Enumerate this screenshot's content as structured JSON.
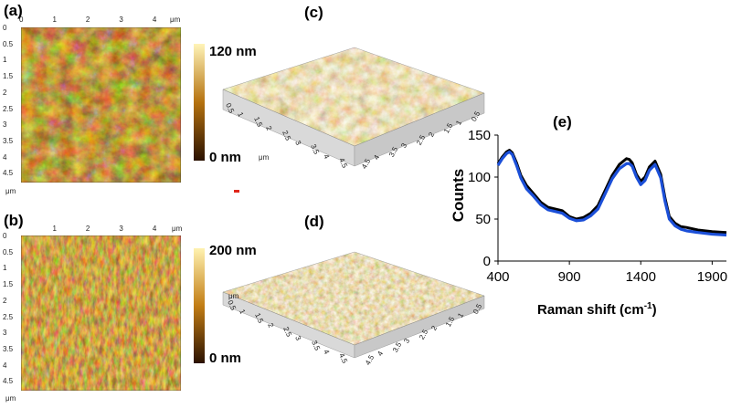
{
  "colors": {
    "afm_dark": "#3a1c02",
    "afm_mid": "#b5720f",
    "afm_light": "#f2d86a",
    "series_blue": "#1b4fd8",
    "series_black": "#000000"
  },
  "panel_a": {
    "label": "(a)",
    "x_ticks": [
      "0",
      "1",
      "2",
      "3",
      "4"
    ],
    "x_unit": "μm",
    "y_ticks": [
      "0",
      "0.5",
      "1",
      "1.5",
      "2",
      "2.5",
      "3",
      "3.5",
      "4",
      "4.5"
    ],
    "y_unit": "μm",
    "colorbar_max": "120 nm",
    "colorbar_min": "0 nm"
  },
  "panel_b": {
    "label": "(b)",
    "x_ticks": [
      "1",
      "2",
      "3",
      "4"
    ],
    "x_unit": "μm",
    "y_ticks": [
      "0",
      "0.5",
      "1",
      "1.5",
      "2",
      "2.5",
      "3",
      "3.5",
      "4",
      "4.5"
    ],
    "y_unit": "μm",
    "colorbar_max": "200 nm",
    "colorbar_min": "0 nm"
  },
  "panel_c": {
    "label": "(c)",
    "left_ticks": [
      "0.5",
      "1",
      "1.5",
      "2",
      "2.5",
      "3",
      "3.5",
      "4",
      "4.5"
    ],
    "right_ticks": [
      "4.5",
      "4",
      "3.5",
      "3",
      "2.5",
      "2",
      "1.5",
      "1",
      "0.5"
    ],
    "unit": "μm"
  },
  "panel_d": {
    "label": "(d)",
    "left_ticks": [
      "0.5",
      "1",
      "1.5",
      "2",
      "2.5",
      "3",
      "3.5",
      "4",
      "4.5"
    ],
    "right_ticks": [
      "4.5",
      "4",
      "3.5",
      "3",
      "2.5",
      "2",
      "1.5",
      "1",
      "0.5"
    ],
    "unit": "μm"
  },
  "panel_e": {
    "label": "(e)"
  },
  "chart_data": {
    "type": "line",
    "title": "",
    "xlabel": "Raman shift (cm",
    "xlabel_sup": "-1",
    "xlabel_close": ")",
    "ylabel": "Counts",
    "xlim": [
      400,
      2000
    ],
    "ylim": [
      0,
      150
    ],
    "x_ticks": [
      400,
      900,
      1400,
      1900
    ],
    "y_ticks": [
      0,
      50,
      100,
      150
    ],
    "grid": false,
    "series": [
      {
        "color": "#000000",
        "x": [
          400,
          430,
          460,
          480,
          500,
          530,
          560,
          600,
          650,
          700,
          750,
          800,
          850,
          900,
          950,
          1000,
          1050,
          1100,
          1150,
          1200,
          1250,
          1300,
          1320,
          1340,
          1370,
          1400,
          1430,
          1460,
          1500,
          1540,
          1570,
          1600,
          1640,
          1680,
          1720,
          1800,
          1900,
          2000
        ],
        "y": [
          116,
          124,
          130,
          132,
          129,
          117,
          102,
          90,
          80,
          70,
          64,
          62,
          60,
          53,
          50,
          52,
          57,
          66,
          84,
          102,
          115,
          122,
          121,
          117,
          103,
          95,
          100,
          112,
          119,
          103,
          75,
          53,
          45,
          41,
          40,
          37,
          35,
          34
        ]
      },
      {
        "color": "#1b4fd8",
        "x": [
          400,
          430,
          460,
          480,
          500,
          530,
          560,
          600,
          650,
          700,
          750,
          800,
          850,
          900,
          950,
          1000,
          1050,
          1100,
          1150,
          1200,
          1250,
          1300,
          1320,
          1340,
          1370,
          1400,
          1430,
          1460,
          1500,
          1540,
          1570,
          1600,
          1640,
          1680,
          1720,
          1800,
          1900,
          2000
        ],
        "y": [
          114,
          122,
          128,
          130,
          127,
          114,
          99,
          86,
          77,
          67,
          61,
          59,
          57,
          51,
          48,
          49,
          54,
          62,
          80,
          98,
          110,
          116,
          116,
          113,
          100,
          91,
          96,
          108,
          115,
          99,
          71,
          50,
          42,
          38,
          36,
          34,
          32,
          31
        ]
      }
    ]
  }
}
